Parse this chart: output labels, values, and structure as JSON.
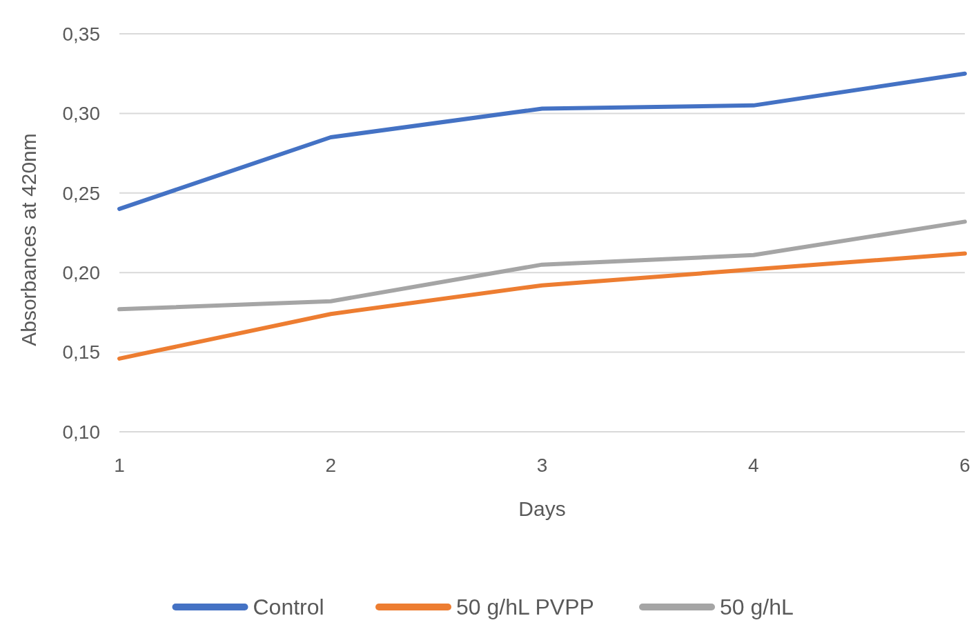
{
  "chart_data": {
    "type": "line",
    "xlabel": "Days",
    "ylabel": "Absorbances at 420nm",
    "categories": [
      "1",
      "2",
      "3",
      "4",
      "6"
    ],
    "series": [
      {
        "name": "Control",
        "color": "#4472c4",
        "values": [
          0.24,
          0.285,
          0.303,
          0.305,
          0.325
        ]
      },
      {
        "name": "50 g/hL PVPP",
        "color": "#ed7d31",
        "values": [
          0.146,
          0.174,
          0.192,
          0.202,
          0.212
        ]
      },
      {
        "name": "50 g/hL",
        "color": "#a5a5a5",
        "values": [
          0.177,
          0.182,
          0.205,
          0.211,
          0.232
        ]
      }
    ],
    "ylim": [
      0.1,
      0.35
    ],
    "yticks": [
      {
        "value": 0.1,
        "label": "0,10"
      },
      {
        "value": 0.15,
        "label": "0,15"
      },
      {
        "value": 0.2,
        "label": "0,20"
      },
      {
        "value": 0.25,
        "label": "0,25"
      },
      {
        "value": 0.3,
        "label": "0,30"
      },
      {
        "value": 0.35,
        "label": "0,35"
      }
    ],
    "grid": "y",
    "legend": "bottom",
    "marker": "none",
    "line_style": "solid"
  }
}
